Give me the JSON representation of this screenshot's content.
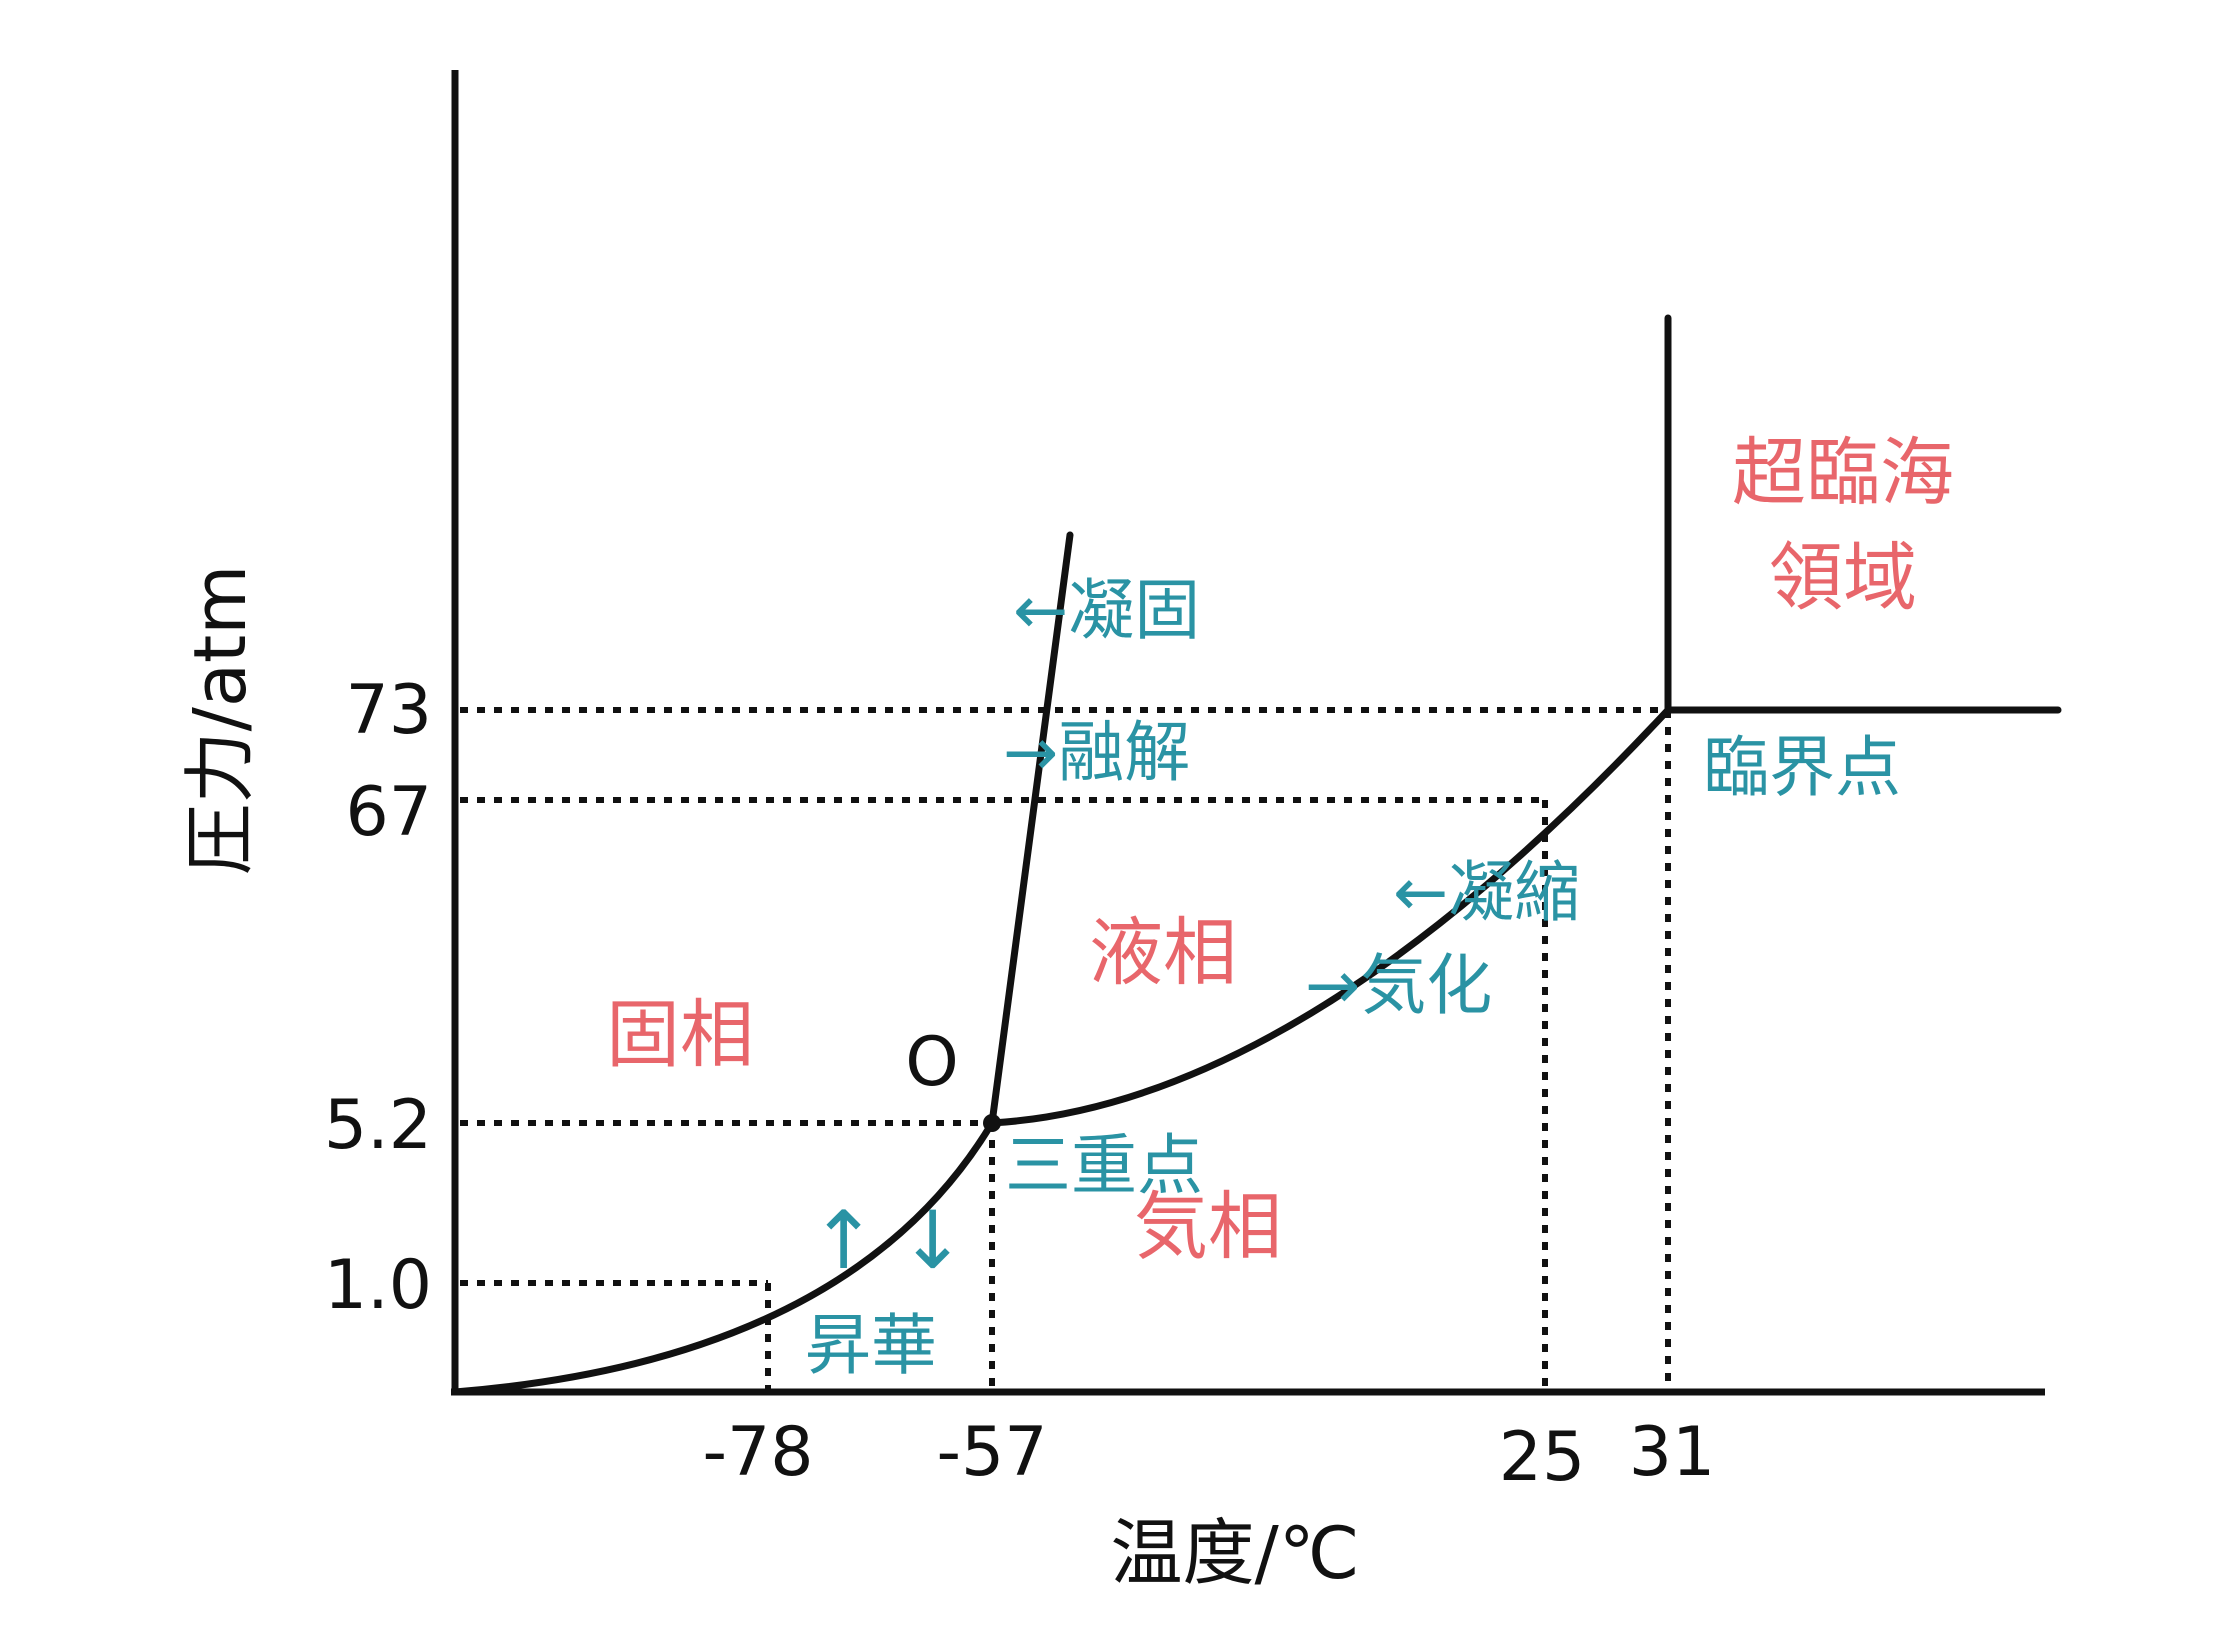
{
  "colors": {
    "ink": "#111111",
    "phase": "#e8666b",
    "process": "#2a93a4"
  },
  "axes": {
    "x_title": "温度/℃",
    "y_title": "圧力/atm",
    "x_ticks": [
      "-78",
      "-57",
      "25",
      "31"
    ],
    "y_ticks": [
      "73",
      "67",
      "5.2",
      "1.0"
    ]
  },
  "regions": {
    "solid": "固相",
    "liquid": "液相",
    "gas": "気相",
    "supercritical_1": "超臨海",
    "supercritical_2": "領域"
  },
  "points": {
    "triple_letter": "O",
    "triple_label": "三重点",
    "critical_label": "臨界点"
  },
  "processes": {
    "freezing": "←凝固",
    "melting": "→融解",
    "condensation": "←凝縮",
    "vaporization": "→気化",
    "sublimation_arrows": "↑↓",
    "sublimation": "昇華"
  }
}
